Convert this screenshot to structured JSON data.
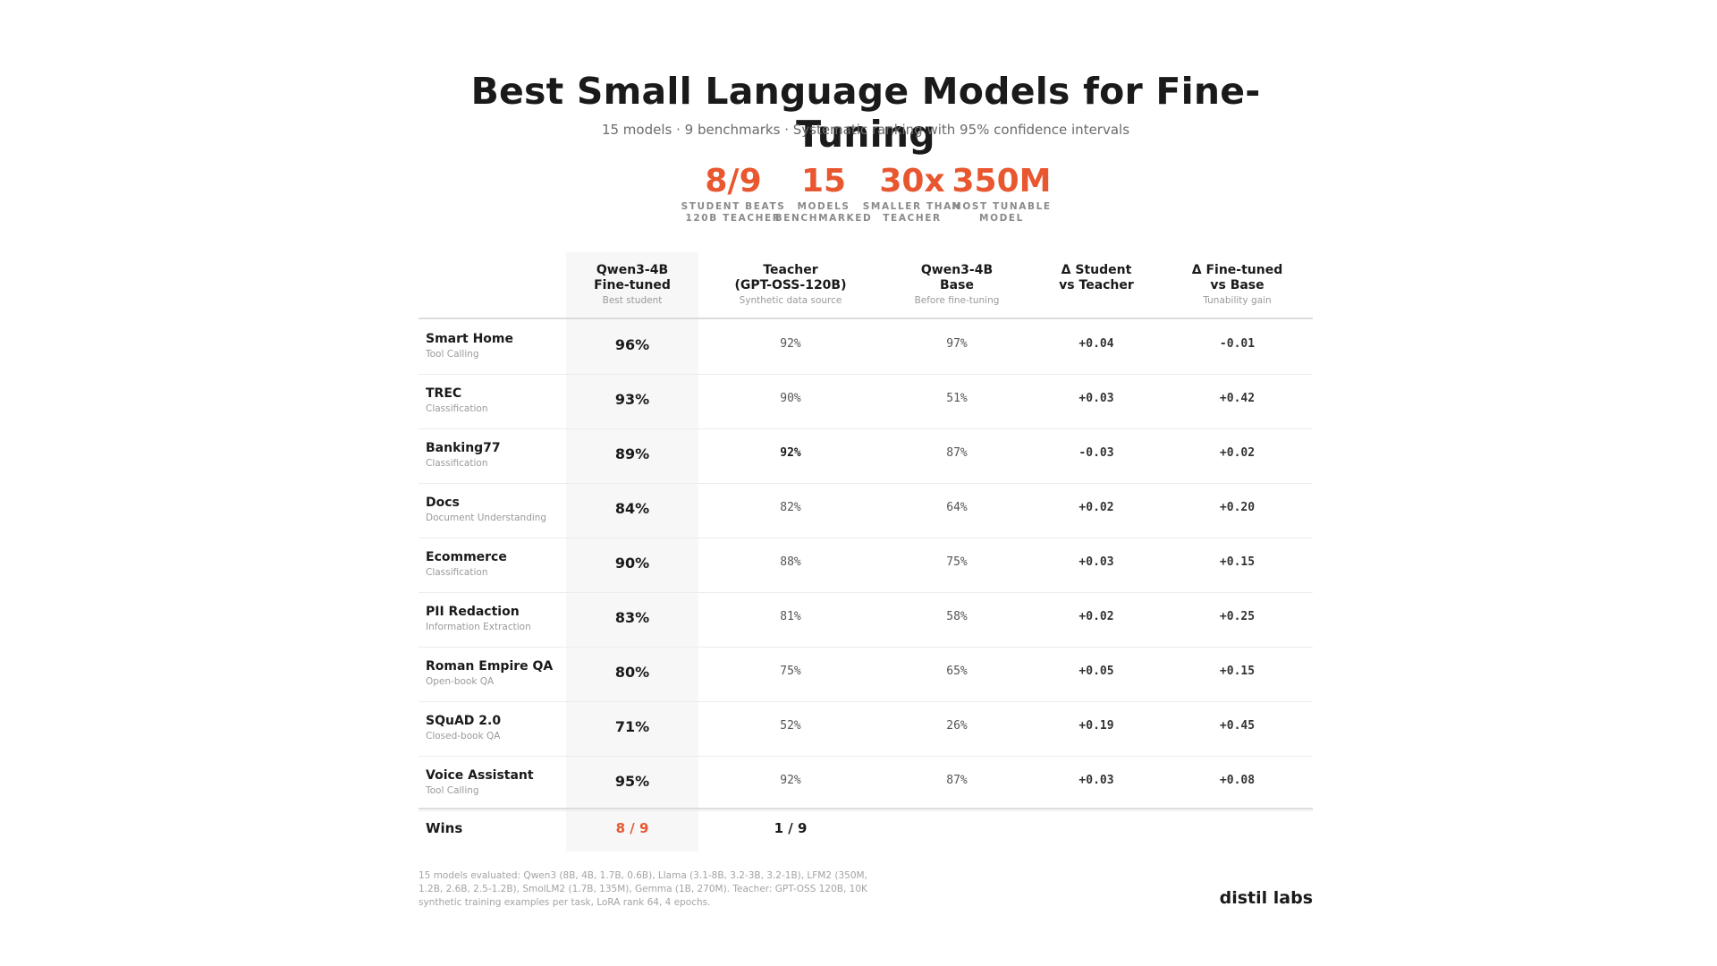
{
  "header": {
    "title": "Best Small Language Models for Fine-Tuning",
    "subtitle": "15 models · 9 benchmarks · Systematic ranking with 95% confidence intervals"
  },
  "stats": [
    {
      "value": "8/9",
      "label_line1": "STUDENT BEATS",
      "label_line2": "120B TEACHER"
    },
    {
      "value": "15",
      "label_line1": "MODELS",
      "label_line2": "BENCHMARKED"
    },
    {
      "value": "30x",
      "label_line1": "SMALLER THAN",
      "label_line2": "TEACHER"
    },
    {
      "value": "350M",
      "label_line1": "MOST TUNABLE",
      "label_line2": "MODEL"
    }
  ],
  "table": {
    "columns": [
      {
        "line1": "Qwen3-4B",
        "line2": "Fine-tuned",
        "sub": "Best student"
      },
      {
        "line1": "Teacher",
        "line2": "(GPT-OSS-120B)",
        "sub": "Synthetic data source"
      },
      {
        "line1": "Qwen3-4B",
        "line2": "Base",
        "sub": "Before fine-tuning"
      },
      {
        "line1": "Δ Student",
        "line2": "vs Teacher",
        "sub": ""
      },
      {
        "line1": "Δ Fine-tuned",
        "line2": "vs Base",
        "sub": "Tunability gain"
      }
    ],
    "rows": [
      {
        "name": "Smart Home",
        "category": "Tool Calling",
        "finetuned": "96%",
        "teacher": "92%",
        "base": "97%",
        "d_teacher": "+0.04",
        "d_base": "-0.01"
      },
      {
        "name": "TREC",
        "category": "Classification",
        "finetuned": "93%",
        "teacher": "90%",
        "base": "51%",
        "d_teacher": "+0.03",
        "d_base": "+0.42"
      },
      {
        "name": "Banking77",
        "category": "Classification",
        "finetuned": "89%",
        "teacher": "92%",
        "base": "87%",
        "d_teacher": "-0.03",
        "d_base": "+0.02"
      },
      {
        "name": "Docs",
        "category": "Document Understanding",
        "finetuned": "84%",
        "teacher": "82%",
        "base": "64%",
        "d_teacher": "+0.02",
        "d_base": "+0.20"
      },
      {
        "name": "Ecommerce",
        "category": "Classification",
        "finetuned": "90%",
        "teacher": "88%",
        "base": "75%",
        "d_teacher": "+0.03",
        "d_base": "+0.15"
      },
      {
        "name": "PII Redaction",
        "category": "Information Extraction",
        "finetuned": "83%",
        "teacher": "81%",
        "base": "58%",
        "d_teacher": "+0.02",
        "d_base": "+0.25"
      },
      {
        "name": "Roman Empire QA",
        "category": "Open-book QA",
        "finetuned": "80%",
        "teacher": "75%",
        "base": "65%",
        "d_teacher": "+0.05",
        "d_base": "+0.15"
      },
      {
        "name": "SQuAD 2.0",
        "category": "Closed-book QA",
        "finetuned": "71%",
        "teacher": "52%",
        "base": "26%",
        "d_teacher": "+0.19",
        "d_base": "+0.45"
      },
      {
        "name": "Voice Assistant",
        "category": "Tool Calling",
        "finetuned": "95%",
        "teacher": "92%",
        "base": "87%",
        "d_teacher": "+0.03",
        "d_base": "+0.08"
      }
    ],
    "wins": {
      "label": "Wins",
      "finetuned": "8 / 9",
      "teacher": "1 / 9"
    }
  },
  "footnote": "15 models evaluated: Qwen3 (8B, 4B, 1.7B, 0.6B), Llama (3.1-8B, 3.2-3B, 3.2-1B), LFM2 (350M, 1.2B, 2.6B, 2.5-1.2B), SmolLM2 (1.7B, 135M), Gemma (1B, 270M). Teacher: GPT-OSS 120B, 10K synthetic training examples per task, LoRA rank 64, 4 epochs.",
  "brand": "distil labs",
  "colors": {
    "accent": "#e8572f",
    "highlight_bg": "#f7f7f7"
  }
}
